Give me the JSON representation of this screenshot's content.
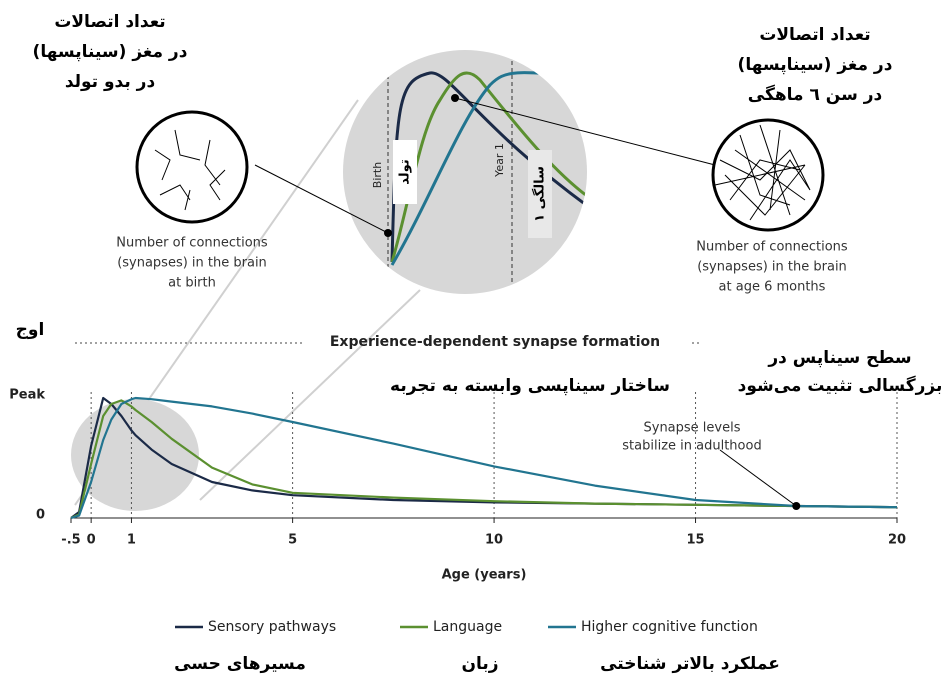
{
  "chart_data": {
    "type": "line",
    "xlabel": "Age (years)",
    "x": [
      -0.5,
      -0.3,
      0,
      0.3,
      0.5,
      0.75,
      1,
      1.1,
      1.5,
      2,
      3,
      4,
      5,
      7.5,
      10,
      12.5,
      15,
      17.5,
      20
    ],
    "series": [
      {
        "name": "Sensory pathways",
        "color": "#1b2a47",
        "values": [
          0,
          0.05,
          0.6,
          1.0,
          0.95,
          0.85,
          0.73,
          0.69,
          0.57,
          0.45,
          0.3,
          0.23,
          0.19,
          0.15,
          0.13,
          0.12,
          0.11,
          0.1,
          0.09
        ]
      },
      {
        "name": "Language",
        "color": "#5b9030",
        "values": [
          0,
          0.03,
          0.45,
          0.85,
          0.95,
          0.98,
          0.93,
          0.9,
          0.8,
          0.66,
          0.42,
          0.28,
          0.21,
          0.17,
          0.14,
          0.12,
          0.11,
          0.1,
          0.09
        ]
      },
      {
        "name": "Higher cognitive function",
        "color": "#227590",
        "values": [
          0,
          0.02,
          0.3,
          0.65,
          0.82,
          0.95,
          0.99,
          1.0,
          0.99,
          0.97,
          0.93,
          0.87,
          0.8,
          0.62,
          0.43,
          0.27,
          0.15,
          0.1,
          0.09
        ]
      }
    ],
    "xlim": [
      -0.5,
      20
    ],
    "xticks": [
      {
        "value": -0.5,
        "label": "-.5"
      },
      0,
      1,
      5,
      10,
      15,
      20
    ],
    "ylim": [
      0,
      1.2
    ],
    "yticks": [
      0,
      {
        "value": 1,
        "label": "Peak"
      }
    ],
    "grid": true,
    "legend_translations": [
      "مسیرهای حسی",
      "زبان",
      "عملکرد بالاتر شناختی"
    ],
    "annotations": {
      "birth_fa": [
        "تعداد اتصالات",
        "(سیناپسها) در مغز",
        "در بدو تولد"
      ],
      "birth_en": [
        "Number of connections",
        "(synapses) in the brain",
        "at birth"
      ],
      "six_months_fa": [
        "تعداد اتصالات",
        "(سیناپسها) در مغز",
        "در سن ٦ ماهگی"
      ],
      "six_months_en": [
        "Number of connections",
        "(synapses) in the brain",
        "at age 6 months"
      ],
      "peak_fa": "اوج",
      "formation_en": "Experience-dependent synapse formation",
      "formation_fa": "ساختار سیناپسی وابسته به تجربه",
      "adult_fa": [
        "سطح سیناپس در",
        "بزرگسالی تثبیت می‌شود"
      ],
      "adult_en": [
        "Synapse levels",
        "stabilize in adulthood"
      ],
      "inset_birth_en": "Birth",
      "inset_birth_fa": "تولد",
      "inset_year_en": "Year 1",
      "inset_year_fa": "۱ سالگی"
    }
  }
}
